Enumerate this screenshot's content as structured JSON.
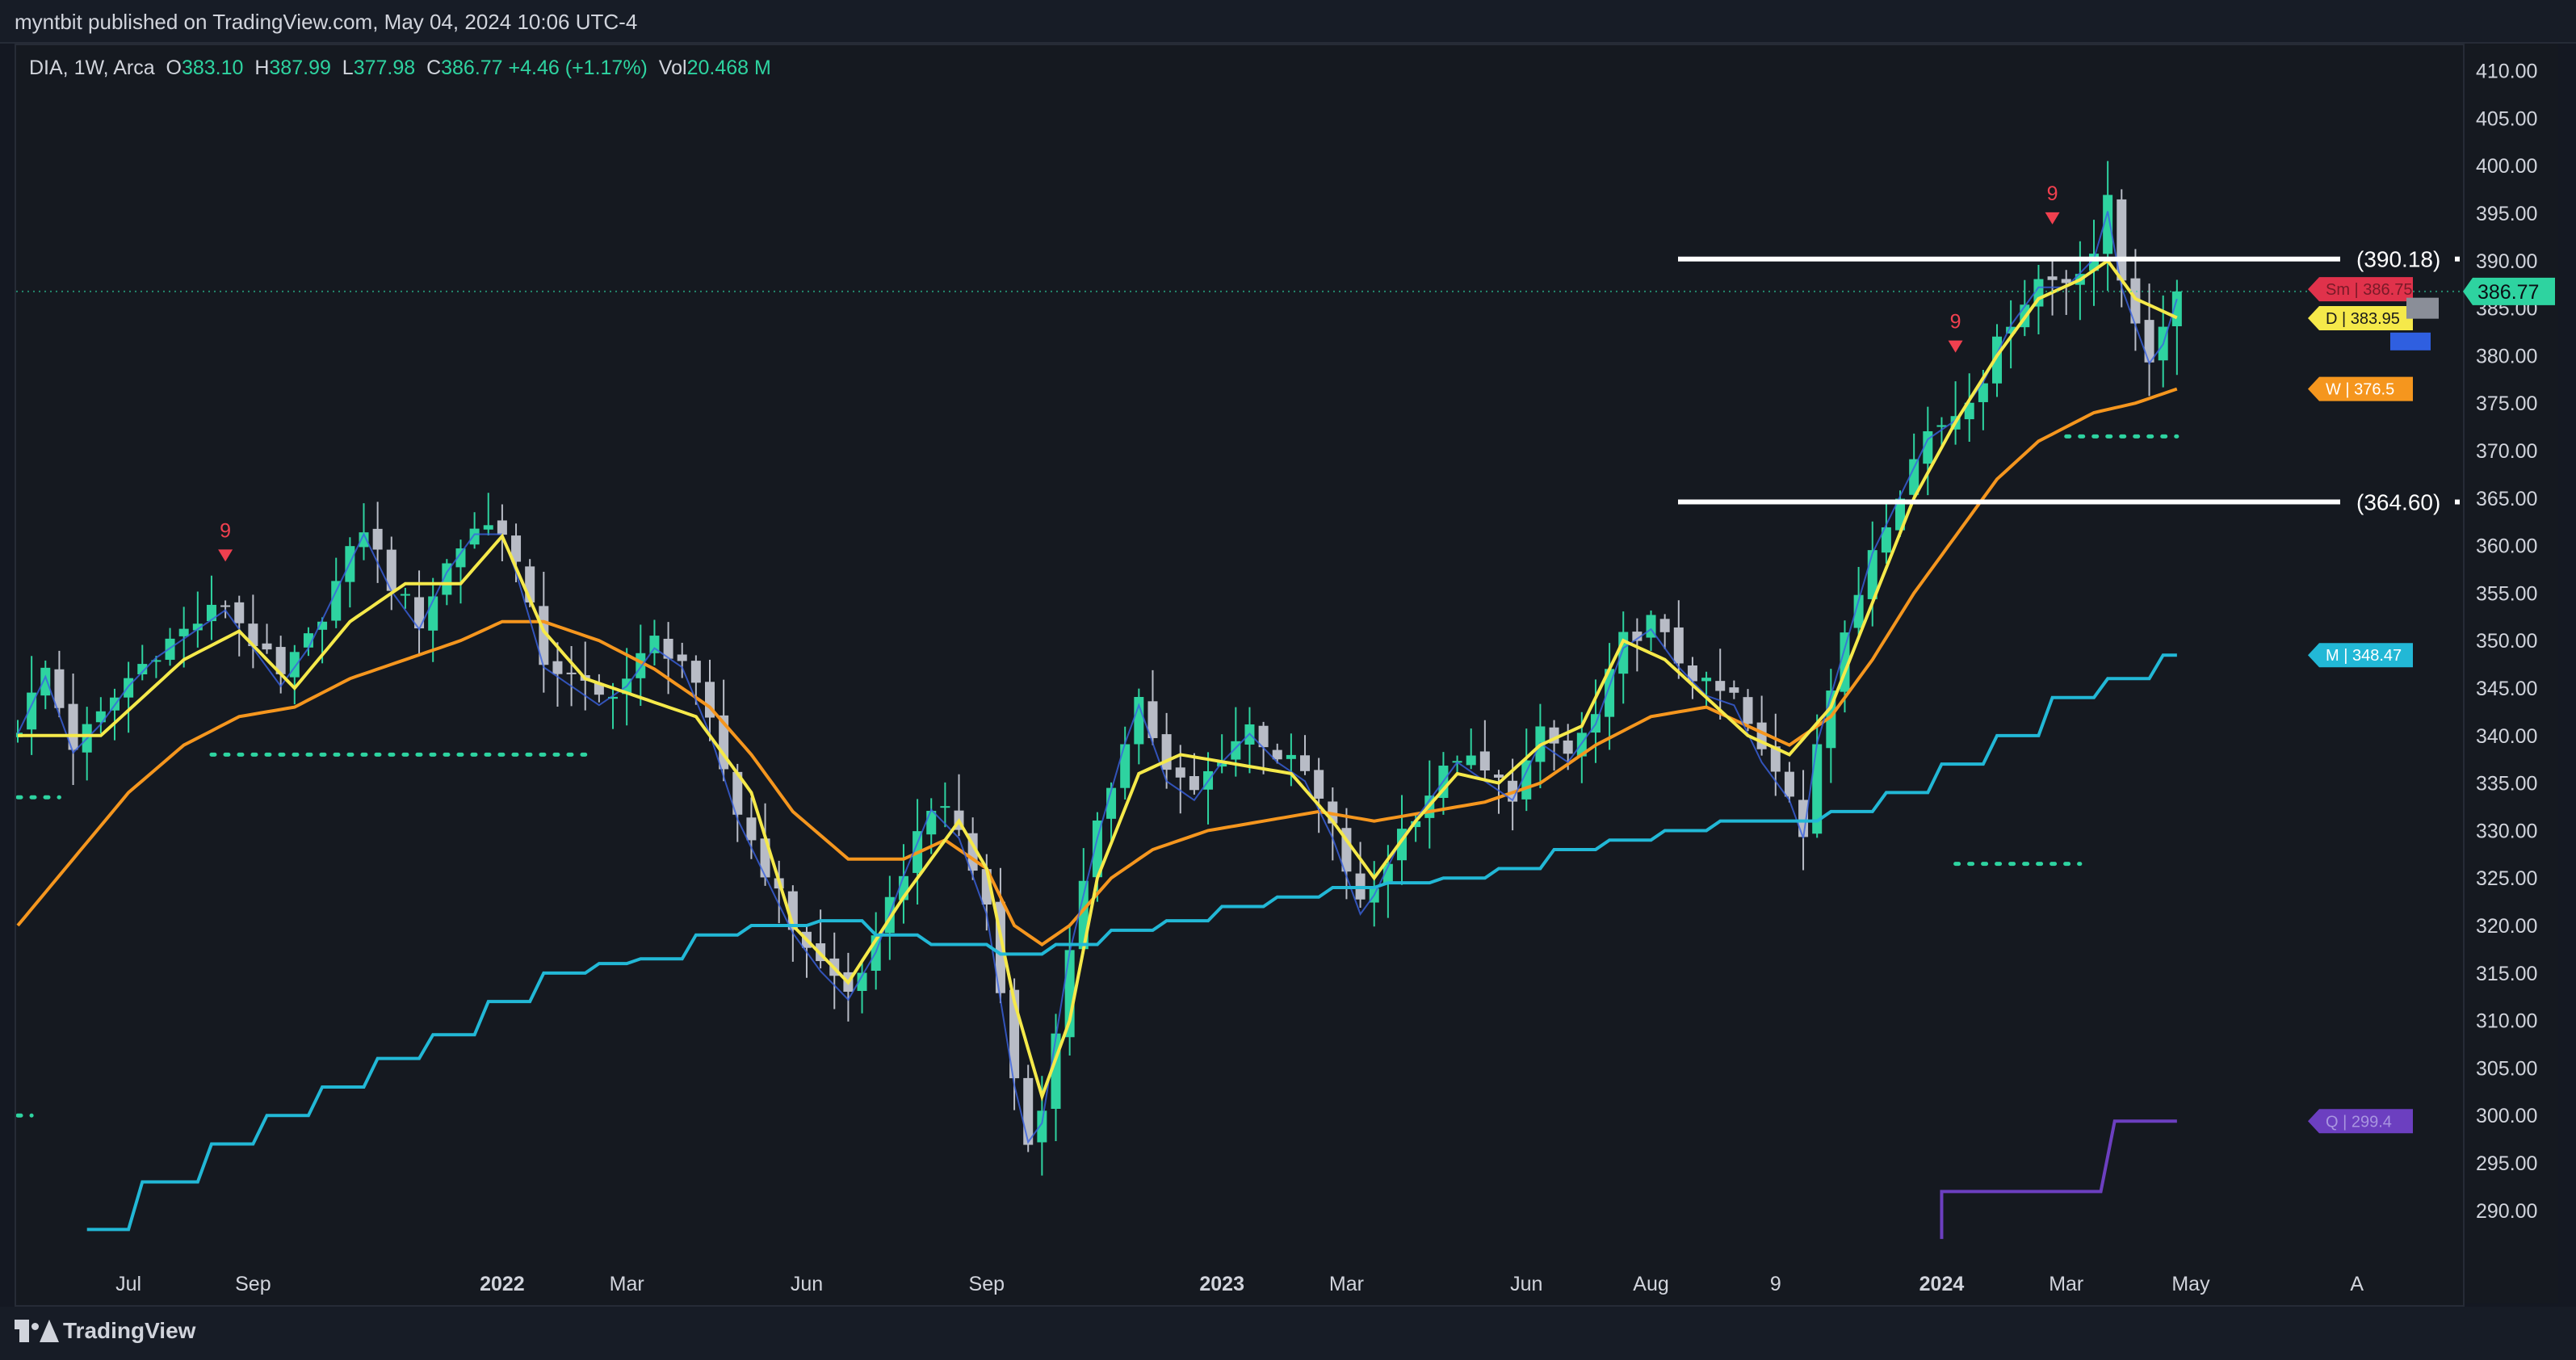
{
  "header": {
    "published_line": "myntbit published on TradingView.com, May 04, 2024 10:06 UTC-4"
  },
  "legend": {
    "symbol": "DIA, 1W, Arca",
    "o_label": "O",
    "o_value": "383.10",
    "h_label": "H",
    "h_value": "387.99",
    "l_label": "L",
    "l_value": "377.98",
    "c_label": "C",
    "c_value": "386.77",
    "change": "+4.46 (+1.17%)",
    "vol_label": "Vol",
    "vol_value": "20.468 M"
  },
  "footer": {
    "brand": "TradingView"
  },
  "colors": {
    "background": "#151920",
    "up_candle": "#2ed3a0",
    "down_candle": "#b8bcc6",
    "ema_fast": "#f5e94a",
    "ema_slow": "#f5961e",
    "monthly": "#22b8d6",
    "quarterly": "#6c3fc0",
    "level_line": "#ffffff",
    "last_price": "#2ed3a0"
  },
  "chart_data": {
    "type": "candlestick",
    "symbol": "DIA",
    "interval": "1W",
    "y_axis": {
      "ticks": [
        410,
        405,
        400,
        395,
        390,
        385,
        380,
        375,
        370,
        365,
        360,
        355,
        350,
        345,
        340,
        335,
        330,
        325,
        320,
        315,
        310,
        305,
        300,
        295,
        290
      ],
      "tick_labels": [
        "410.00",
        "405.00",
        "400.00",
        "395.00",
        "390.00",
        "385.00",
        "380.00",
        "375.00",
        "370.00",
        "365.00",
        "360.00",
        "355.00",
        "350.00",
        "345.00",
        "340.00",
        "335.00",
        "330.00",
        "325.00",
        "320.00",
        "315.00",
        "310.00",
        "305.00",
        "300.00",
        "295.00",
        "290.00"
      ],
      "range": [
        286.5,
        411.5
      ],
      "side": "right"
    },
    "x_axis": {
      "labels": [
        {
          "text": "Jul",
          "week": 8,
          "bold": false
        },
        {
          "text": "Sep",
          "week": 17,
          "bold": false
        },
        {
          "text": "2022",
          "week": 35,
          "bold": true
        },
        {
          "text": "Mar",
          "week": 44,
          "bold": false
        },
        {
          "text": "Jun",
          "week": 57,
          "bold": false
        },
        {
          "text": "Sep",
          "week": 70,
          "bold": false
        },
        {
          "text": "2023",
          "week": 87,
          "bold": true
        },
        {
          "text": "Mar",
          "week": 96,
          "bold": false
        },
        {
          "text": "Jun",
          "week": 109,
          "bold": false
        },
        {
          "text": "Aug",
          "week": 118,
          "bold": false
        },
        {
          "text": "9",
          "week": 127,
          "bold": false
        },
        {
          "text": "2024",
          "week": 139,
          "bold": true
        },
        {
          "text": "Mar",
          "week": 148,
          "bold": false
        },
        {
          "text": "May",
          "week": 157,
          "bold": false
        },
        {
          "text": "A",
          "week": 169,
          "bold": false
        }
      ]
    },
    "close_anchors": [
      [
        0,
        341
      ],
      [
        2,
        347
      ],
      [
        4,
        339
      ],
      [
        6,
        342
      ],
      [
        8,
        346
      ],
      [
        10,
        349
      ],
      [
        12,
        351
      ],
      [
        14,
        353
      ],
      [
        15,
        354
      ],
      [
        17,
        350
      ],
      [
        19,
        346
      ],
      [
        21,
        350
      ],
      [
        23,
        356
      ],
      [
        25,
        362
      ],
      [
        27,
        356
      ],
      [
        29,
        352
      ],
      [
        31,
        358
      ],
      [
        33,
        362
      ],
      [
        35,
        362
      ],
      [
        36,
        358
      ],
      [
        38,
        348
      ],
      [
        40,
        346
      ],
      [
        42,
        344
      ],
      [
        44,
        346
      ],
      [
        46,
        350
      ],
      [
        48,
        348
      ],
      [
        50,
        341
      ],
      [
        52,
        332
      ],
      [
        54,
        326
      ],
      [
        56,
        320
      ],
      [
        58,
        316
      ],
      [
        60,
        313
      ],
      [
        62,
        318
      ],
      [
        64,
        326
      ],
      [
        66,
        333
      ],
      [
        68,
        330
      ],
      [
        70,
        322
      ],
      [
        72,
        304
      ],
      [
        73,
        298
      ],
      [
        74,
        300
      ],
      [
        76,
        318
      ],
      [
        78,
        330
      ],
      [
        80,
        340
      ],
      [
        81,
        344
      ],
      [
        83,
        336
      ],
      [
        85,
        334
      ],
      [
        87,
        338
      ],
      [
        89,
        341
      ],
      [
        91,
        338
      ],
      [
        93,
        336
      ],
      [
        95,
        330
      ],
      [
        97,
        322
      ],
      [
        98,
        324
      ],
      [
        100,
        330
      ],
      [
        102,
        334
      ],
      [
        104,
        338
      ],
      [
        106,
        336
      ],
      [
        108,
        334
      ],
      [
        110,
        340
      ],
      [
        112,
        338
      ],
      [
        114,
        342
      ],
      [
        116,
        350
      ],
      [
        118,
        352
      ],
      [
        120,
        348
      ],
      [
        122,
        345
      ],
      [
        124,
        344
      ],
      [
        126,
        338
      ],
      [
        128,
        334
      ],
      [
        129,
        330
      ],
      [
        130,
        340
      ],
      [
        132,
        350
      ],
      [
        134,
        360
      ],
      [
        136,
        366
      ],
      [
        138,
        372
      ],
      [
        140,
        374
      ],
      [
        142,
        378
      ],
      [
        144,
        384
      ],
      [
        146,
        388
      ],
      [
        148,
        388
      ],
      [
        150,
        391
      ],
      [
        151,
        396
      ],
      [
        152,
        388
      ],
      [
        153,
        384
      ],
      [
        154,
        380
      ],
      [
        155,
        382
      ],
      [
        156,
        386.77
      ]
    ],
    "ema_fast_anchors": [
      [
        0,
        340
      ],
      [
        6,
        340
      ],
      [
        12,
        348
      ],
      [
        16,
        351
      ],
      [
        20,
        345
      ],
      [
        24,
        352
      ],
      [
        28,
        356
      ],
      [
        32,
        356
      ],
      [
        35,
        361
      ],
      [
        38,
        351
      ],
      [
        41,
        346
      ],
      [
        45,
        344
      ],
      [
        49,
        342
      ],
      [
        53,
        334
      ],
      [
        56,
        320
      ],
      [
        60,
        314
      ],
      [
        64,
        323
      ],
      [
        68,
        331
      ],
      [
        70,
        326
      ],
      [
        72,
        312
      ],
      [
        74,
        302
      ],
      [
        76,
        310
      ],
      [
        78,
        325
      ],
      [
        81,
        336
      ],
      [
        84,
        338
      ],
      [
        88,
        337
      ],
      [
        92,
        336
      ],
      [
        95,
        331
      ],
      [
        98,
        325
      ],
      [
        101,
        331
      ],
      [
        104,
        336
      ],
      [
        107,
        335
      ],
      [
        110,
        339
      ],
      [
        113,
        341
      ],
      [
        116,
        350
      ],
      [
        119,
        348
      ],
      [
        122,
        344
      ],
      [
        125,
        340
      ],
      [
        128,
        338
      ],
      [
        131,
        343
      ],
      [
        134,
        354
      ],
      [
        137,
        365
      ],
      [
        140,
        373
      ],
      [
        143,
        380
      ],
      [
        146,
        386
      ],
      [
        149,
        388
      ],
      [
        151,
        390
      ],
      [
        153,
        386
      ],
      [
        156,
        384
      ]
    ],
    "ema_slow_anchors": [
      [
        0,
        320
      ],
      [
        4,
        327
      ],
      [
        8,
        334
      ],
      [
        12,
        339
      ],
      [
        16,
        342
      ],
      [
        20,
        343
      ],
      [
        24,
        346
      ],
      [
        28,
        348
      ],
      [
        32,
        350
      ],
      [
        35,
        352
      ],
      [
        38,
        352
      ],
      [
        42,
        350
      ],
      [
        46,
        347
      ],
      [
        50,
        343
      ],
      [
        53,
        338
      ],
      [
        56,
        332
      ],
      [
        60,
        327
      ],
      [
        64,
        327
      ],
      [
        67,
        329
      ],
      [
        70,
        326
      ],
      [
        72,
        320
      ],
      [
        74,
        318
      ],
      [
        76,
        320
      ],
      [
        79,
        325
      ],
      [
        82,
        328
      ],
      [
        86,
        330
      ],
      [
        90,
        331
      ],
      [
        94,
        332
      ],
      [
        98,
        331
      ],
      [
        102,
        332
      ],
      [
        106,
        333
      ],
      [
        110,
        335
      ],
      [
        114,
        339
      ],
      [
        118,
        342
      ],
      [
        122,
        343
      ],
      [
        125,
        341
      ],
      [
        128,
        339
      ],
      [
        131,
        342
      ],
      [
        134,
        348
      ],
      [
        137,
        355
      ],
      [
        140,
        361
      ],
      [
        143,
        367
      ],
      [
        146,
        371
      ],
      [
        150,
        374
      ],
      [
        153,
        375
      ],
      [
        156,
        376.5
      ]
    ],
    "monthly_step": [
      [
        5,
        288
      ],
      [
        9,
        293
      ],
      [
        14,
        297
      ],
      [
        18,
        300
      ],
      [
        22,
        303
      ],
      [
        26,
        306
      ],
      [
        30,
        308.5
      ],
      [
        34,
        312
      ],
      [
        38,
        315
      ],
      [
        42,
        316
      ],
      [
        45,
        316.5
      ],
      [
        49,
        319
      ],
      [
        53,
        320
      ],
      [
        58,
        320.5
      ],
      [
        62,
        319
      ],
      [
        66,
        318
      ],
      [
        71,
        317
      ],
      [
        75,
        318
      ],
      [
        79,
        319.5
      ],
      [
        83,
        320.5
      ],
      [
        87,
        322
      ],
      [
        91,
        323
      ],
      [
        95,
        324
      ],
      [
        99,
        324.5
      ],
      [
        103,
        325
      ],
      [
        107,
        326
      ],
      [
        111,
        328
      ],
      [
        115,
        329
      ],
      [
        119,
        330
      ],
      [
        123,
        331
      ],
      [
        127,
        331
      ],
      [
        131,
        332
      ],
      [
        135,
        334
      ],
      [
        139,
        337
      ],
      [
        143,
        340
      ],
      [
        147,
        344
      ],
      [
        151,
        346
      ],
      [
        155,
        348.47
      ]
    ],
    "quarterly_step": [
      [
        139,
        292
      ],
      [
        152,
        299.4
      ]
    ],
    "horizontal_levels": [
      {
        "label": "(390.18)",
        "value": 390.18
      },
      {
        "label": "(364.60)",
        "value": 364.6
      }
    ],
    "markers": [
      {
        "label": "9",
        "week": 15,
        "price": 359
      },
      {
        "label": "9",
        "week": 140,
        "price": 381
      },
      {
        "label": "9",
        "week": 147,
        "price": 394.5
      }
    ],
    "dotted_levels": [
      {
        "from_week": 0,
        "to_week": 3,
        "value": 333.5
      },
      {
        "from_week": 14,
        "to_week": 41,
        "value": 338
      },
      {
        "from_week": 0,
        "to_week": 1,
        "value": 300
      },
      {
        "from_week": 140,
        "to_week": 149,
        "value": 326.5
      },
      {
        "from_week": 148,
        "to_week": 156,
        "value": 371.5
      }
    ],
    "price_tags": [
      {
        "text": "386.77",
        "value": 386.77,
        "color": "#2ed3a0",
        "text_color": "#0b0e14",
        "kind": "last"
      },
      {
        "text": "Sm | 386.75",
        "value": 387.0,
        "color": "#e0324b",
        "text_color": "#7a1a28"
      },
      {
        "text": "D | 383.95",
        "value": 383.95,
        "color": "#f5e94a",
        "text_color": "#1a1a1a"
      },
      {
        "text": "W | 376.5",
        "value": 376.5,
        "color": "#f5961e",
        "text_color": "#ffffff"
      },
      {
        "text": "M | 348.47",
        "value": 348.47,
        "color": "#22b8d6",
        "text_color": "#ffffff"
      },
      {
        "text": "Q | 299.4",
        "value": 299.4,
        "color": "#6c3fc0",
        "text_color": "#a995e0"
      }
    ]
  }
}
